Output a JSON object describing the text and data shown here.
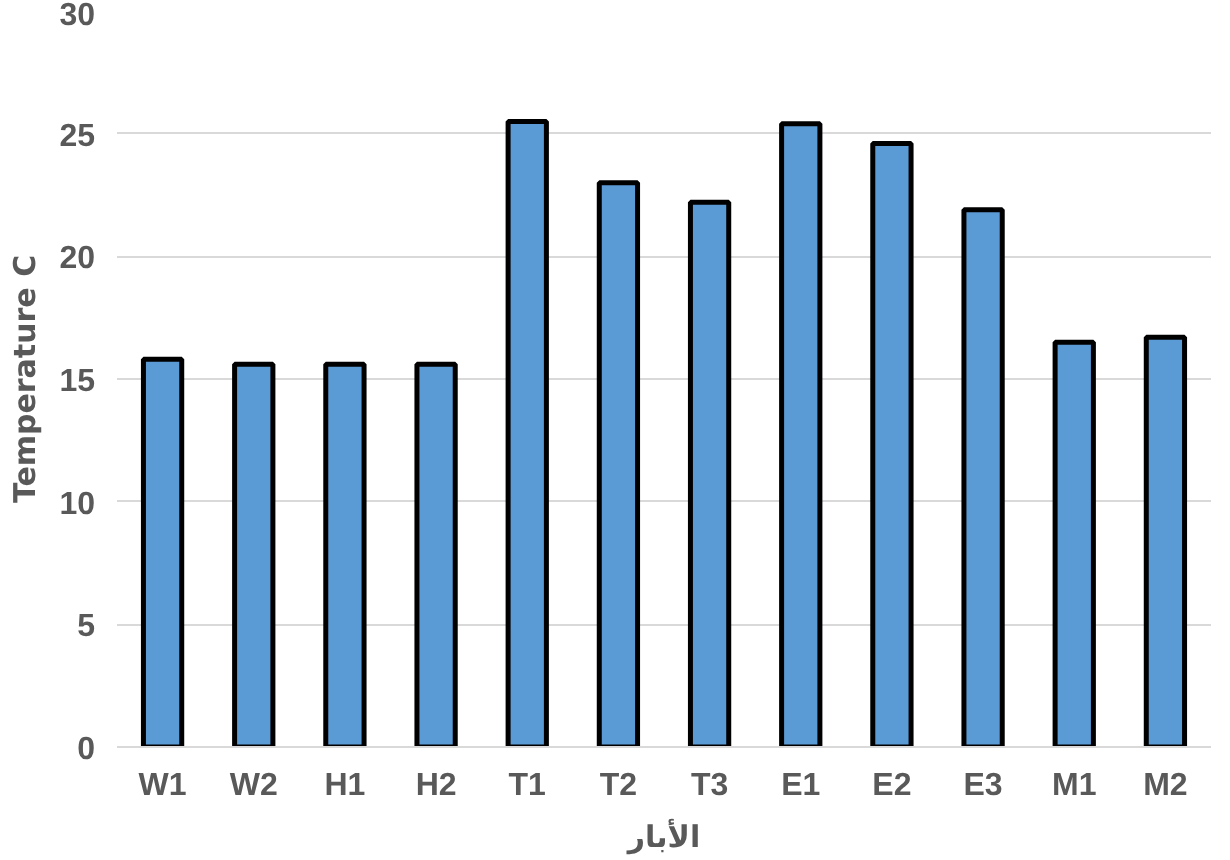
{
  "chart_data": {
    "type": "bar",
    "categories": [
      "W1",
      "W2",
      "H1",
      "H2",
      "T1",
      "T2",
      "T3",
      "E1",
      "E2",
      "E3",
      "M1",
      "M2"
    ],
    "values": [
      15.8,
      15.6,
      15.6,
      15.6,
      25.5,
      23.0,
      22.2,
      25.4,
      24.6,
      21.9,
      16.5,
      16.7
    ],
    "color": "#5b9bd5",
    "xlabel": "الأبار",
    "ylabel": "Temperature C",
    "ylim": [
      0,
      30
    ],
    "yticks": [
      0,
      5,
      10,
      15,
      20,
      25,
      30
    ],
    "grid": "y"
  }
}
